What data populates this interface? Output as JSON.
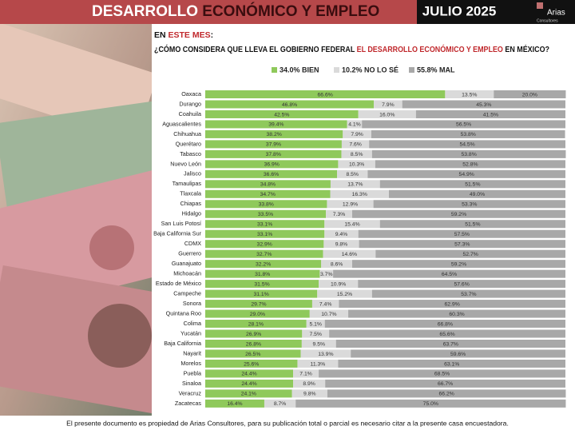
{
  "header": {
    "title_parts": [
      "DESARROLLO",
      "ECONÓMICO Y EMPLEO"
    ],
    "date": "JULIO 2025",
    "logo": "Arias",
    "logo_sub": "Consultores",
    "intro_parts": [
      "EN",
      "ESTE MES",
      ":"
    ],
    "question_parts": [
      "¿CÓMO CONSIDERA QUE LLEVA EL GOBIERNO FEDERAL",
      "EL DESARROLLO ECONÓMICO Y EMPLEO",
      "EN MÉXICO?"
    ]
  },
  "footer": "El presente documento es propiedad de Arias Consultores, para su publicación total o parcial es necesario citar a la presente casa encuestadora.",
  "chart_data": {
    "type": "stacked-bar-horizontal",
    "xlim": [
      0,
      100
    ],
    "categories": [
      "Oaxaca",
      "Durango",
      "Coahuila",
      "Aguascalientes",
      "Chihuahua",
      "Querétaro",
      "Tabasco",
      "Nuevo León",
      "Jalisco",
      "Tamaulipas",
      "Tlaxcala",
      "Chiapas",
      "Hidalgo",
      "San Luis Potosí",
      "Baja California Sur",
      "CDMX",
      "Guerrero",
      "Guanajuato",
      "Michoacán",
      "Estado de México",
      "Campeche",
      "Sonora",
      "Quintana Roo",
      "Colima",
      "Yucatán",
      "Baja California",
      "Nayarit",
      "Morelos",
      "Puebla",
      "Sinaloa",
      "Veracruz",
      "Zacatecas"
    ],
    "series": [
      {
        "name": "34.0% BIEN",
        "color": "#8fc95b",
        "values": [
          66.6,
          46.8,
          42.5,
          39.4,
          38.2,
          37.9,
          37.8,
          36.9,
          36.6,
          34.8,
          34.7,
          33.8,
          33.5,
          33.1,
          33.1,
          32.9,
          32.7,
          32.2,
          31.8,
          31.5,
          31.1,
          29.7,
          29.0,
          28.1,
          26.9,
          26.8,
          26.5,
          25.6,
          24.4,
          24.4,
          24.1,
          16.4
        ],
        "value_labels": [
          "66.6%",
          "46.8%",
          "42.5%",
          "39.4%",
          "38.2%",
          "37.9%",
          "37.8%",
          "36.9%",
          "36.6%",
          "34.8%",
          "34.7%",
          "33.8%",
          "33.5%",
          "33.1%",
          "33.1%",
          "32.9%",
          "32.7%",
          "32.2%",
          "31.8%",
          "31.5%",
          "31.1%",
          "29.7%",
          "29.0%",
          "28.1%",
          "26.9%",
          "26.8%",
          "26.5%",
          "25.6%",
          "24.4%",
          "24.4%",
          "24.1%",
          "16.4%"
        ]
      },
      {
        "name": "10.2% NO LO SÉ",
        "color": "#dadada",
        "values": [
          13.5,
          7.9,
          16.0,
          4.1,
          7.9,
          7.6,
          8.5,
          10.3,
          8.5,
          13.7,
          16.3,
          12.9,
          7.3,
          15.4,
          9.4,
          9.8,
          14.6,
          8.6,
          3.7,
          10.9,
          15.2,
          7.4,
          10.7,
          5.1,
          7.5,
          9.5,
          13.9,
          11.3,
          7.1,
          8.9,
          9.8,
          8.7
        ],
        "value_labels": [
          "13.5%",
          "7.9%",
          "16.0%",
          "4.1%",
          "7.9%",
          "7.6%",
          "8.5%",
          "10.3%",
          "8.5%",
          "13.7%",
          "16.3%",
          "12.9%",
          "7.3%",
          "15.4%",
          "9.4%",
          "9.8%",
          "14.6%",
          "8.6%",
          "3.7%",
          "10.9%",
          "15.2%",
          "7.4%",
          "10.7%",
          "5.1%",
          "7.5%",
          "9.5%",
          "13.9%",
          "11.3%",
          "7.1%",
          "8.9%",
          "9.8%",
          "8.7%"
        ]
      },
      {
        "name": "55.8% MAL",
        "color": "#a8a8a8",
        "values": [
          20.0,
          45.3,
          41.5,
          56.5,
          53.8,
          54.5,
          53.8,
          52.8,
          54.9,
          51.5,
          49.0,
          53.3,
          59.2,
          51.5,
          57.5,
          57.3,
          52.7,
          59.2,
          64.5,
          57.6,
          53.7,
          62.9,
          60.3,
          66.8,
          65.6,
          63.7,
          59.6,
          63.1,
          68.5,
          66.7,
          66.2,
          75.0
        ],
        "value_labels": [
          "20.0%",
          "45.3%",
          "41.5%",
          "56.5%",
          "53.8%",
          "54.5%",
          "53.8%",
          "52.8%",
          "54.9%",
          "51.5%",
          "49.0%",
          "53.3%",
          "59.2%",
          "51.5%",
          "57.5%",
          "57.3%",
          "52.7%",
          "59.2%",
          "64.5%",
          "57.6%",
          "53.7%",
          "62.9%",
          "60.3%",
          "66.8%",
          "65.6%",
          "63.7%",
          "59.6%",
          "63.1%",
          "68.5%",
          "66.7%",
          "66.2%",
          "75.0%"
        ]
      }
    ]
  }
}
